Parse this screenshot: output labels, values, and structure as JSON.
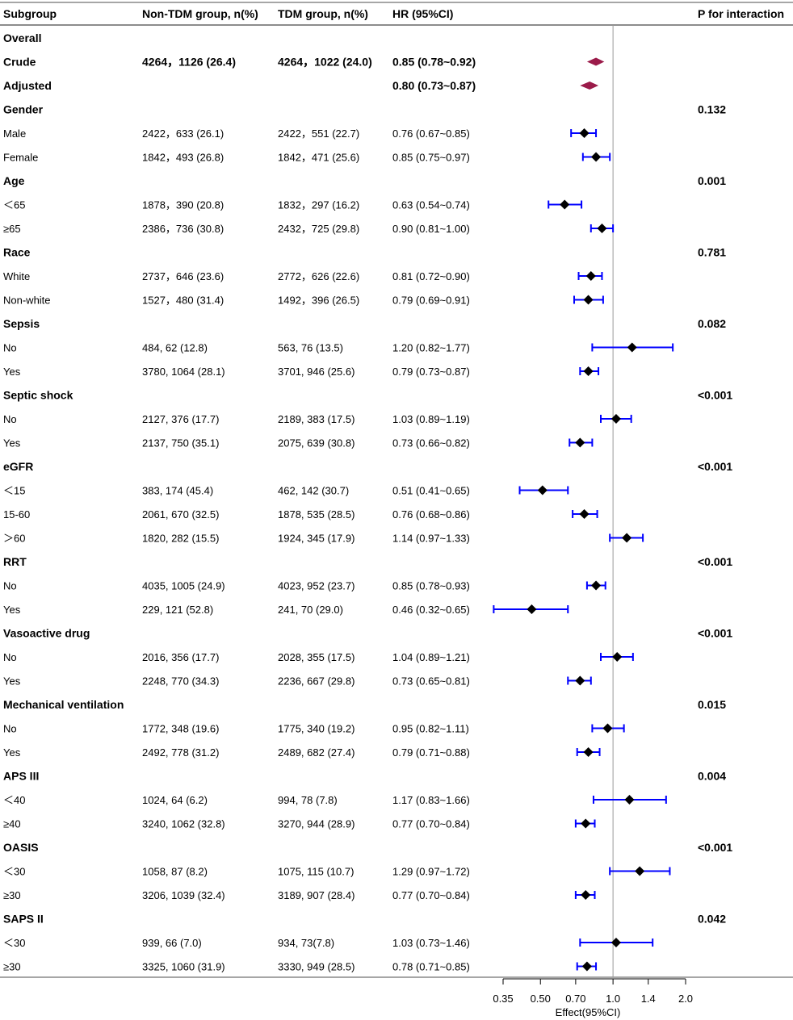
{
  "chart_data": {
    "type": "forest",
    "columns": [
      "Subgroup",
      "Non-TDM group, n(%)",
      "TDM group, n(%)",
      "HR (95%CI)",
      "P for interaction"
    ],
    "x_axis": {
      "label": "Effect(95%CI)",
      "scale": "log",
      "ticks": [
        0.35,
        0.5,
        0.7,
        1.0,
        1.4,
        2.0
      ],
      "tick_labels": [
        "0.35",
        "0.50",
        "0.70",
        "1.0",
        "1.4",
        "2.0"
      ],
      "reference_line": 1.0
    },
    "colors": {
      "summary": "#9b1b4a",
      "point": "#000000",
      "ci": "#0000ff",
      "grid": "#999999"
    },
    "rows": [
      {
        "label": "Overall",
        "heading": true,
        "non_tdm": "",
        "tdm": "",
        "hr_text": "",
        "p": "",
        "hr": null,
        "lo": null,
        "hi": null
      },
      {
        "label": "Crude",
        "heading": true,
        "summary": true,
        "non_tdm": "4264，1126 (26.4)",
        "tdm": "4264，1022 (24.0)",
        "hr_text": "0.85 (0.78~0.92)",
        "p": "",
        "hr": 0.85,
        "lo": 0.78,
        "hi": 0.92
      },
      {
        "label": "Adjusted",
        "heading": true,
        "summary": true,
        "non_tdm": "",
        "tdm": "",
        "hr_text": "0.80 (0.73~0.87)",
        "p": "",
        "hr": 0.8,
        "lo": 0.73,
        "hi": 0.87
      },
      {
        "label": "Gender",
        "heading": true,
        "non_tdm": "",
        "tdm": "",
        "hr_text": "",
        "p": "0.132",
        "hr": null,
        "lo": null,
        "hi": null
      },
      {
        "label": "Male",
        "non_tdm": "2422，633 (26.1)",
        "tdm": "2422，551 (22.7)",
        "hr_text": "0.76 (0.67~0.85)",
        "p": "",
        "hr": 0.76,
        "lo": 0.67,
        "hi": 0.85
      },
      {
        "label": "Female",
        "non_tdm": "1842，493 (26.8)",
        "tdm": "1842，471 (25.6)",
        "hr_text": "0.85 (0.75~0.97)",
        "p": "",
        "hr": 0.85,
        "lo": 0.75,
        "hi": 0.97
      },
      {
        "label": "Age",
        "heading": true,
        "non_tdm": "",
        "tdm": "",
        "hr_text": "",
        "p": "0.001",
        "hr": null,
        "lo": null,
        "hi": null
      },
      {
        "label": "＜65",
        "non_tdm": "1878，390 (20.8)",
        "tdm": "1832，297 (16.2)",
        "hr_text": "0.63 (0.54~0.74)",
        "p": "",
        "hr": 0.63,
        "lo": 0.54,
        "hi": 0.74
      },
      {
        "label": "≥65",
        "non_tdm": "2386，736 (30.8)",
        "tdm": "2432，725 (29.8)",
        "hr_text": "0.90 (0.81~1.00)",
        "p": "",
        "hr": 0.9,
        "lo": 0.81,
        "hi": 1.0
      },
      {
        "label": "Race",
        "heading": true,
        "non_tdm": "",
        "tdm": "",
        "hr_text": "",
        "p": "0.781",
        "hr": null,
        "lo": null,
        "hi": null
      },
      {
        "label": "White",
        "non_tdm": "2737，646 (23.6)",
        "tdm": "2772，626 (22.6)",
        "hr_text": "0.81 (0.72~0.90)",
        "p": "",
        "hr": 0.81,
        "lo": 0.72,
        "hi": 0.9
      },
      {
        "label": "Non-white",
        "non_tdm": "1527，480 (31.4)",
        "tdm": "1492，396 (26.5)",
        "hr_text": "0.79 (0.69~0.91)",
        "p": "",
        "hr": 0.79,
        "lo": 0.69,
        "hi": 0.91
      },
      {
        "label": "Sepsis",
        "heading": true,
        "non_tdm": "",
        "tdm": "",
        "hr_text": "",
        "p": "0.082",
        "hr": null,
        "lo": null,
        "hi": null
      },
      {
        "label": "No",
        "non_tdm": "484, 62 (12.8)",
        "tdm": "563, 76 (13.5)",
        "hr_text": "1.20 (0.82~1.77)",
        "p": "",
        "hr": 1.2,
        "lo": 0.82,
        "hi": 1.77
      },
      {
        "label": "Yes",
        "non_tdm": "3780, 1064 (28.1)",
        "tdm": "3701, 946 (25.6)",
        "hr_text": "0.79 (0.73~0.87)",
        "p": "",
        "hr": 0.79,
        "lo": 0.73,
        "hi": 0.87
      },
      {
        "label": "Septic shock",
        "heading": true,
        "non_tdm": "",
        "tdm": "",
        "hr_text": "",
        "p": "<0.001",
        "hr": null,
        "lo": null,
        "hi": null
      },
      {
        "label": "No",
        "non_tdm": "2127, 376 (17.7)",
        "tdm": "2189, 383 (17.5)",
        "hr_text": "1.03 (0.89~1.19)",
        "p": "",
        "hr": 1.03,
        "lo": 0.89,
        "hi": 1.19
      },
      {
        "label": "Yes",
        "non_tdm": "2137, 750 (35.1)",
        "tdm": "2075, 639 (30.8)",
        "hr_text": "0.73 (0.66~0.82)",
        "p": "",
        "hr": 0.73,
        "lo": 0.66,
        "hi": 0.82
      },
      {
        "label": "eGFR",
        "heading": true,
        "non_tdm": "",
        "tdm": "",
        "hr_text": "",
        "p": "<0.001",
        "hr": null,
        "lo": null,
        "hi": null
      },
      {
        "label": "＜15",
        "non_tdm": "383, 174 (45.4)",
        "tdm": "462, 142 (30.7)",
        "hr_text": "0.51 (0.41~0.65)",
        "p": "",
        "hr": 0.51,
        "lo": 0.41,
        "hi": 0.65
      },
      {
        "label": "15-60",
        "non_tdm": "2061, 670 (32.5)",
        "tdm": "1878, 535 (28.5)",
        "hr_text": "0.76 (0.68~0.86)",
        "p": "",
        "hr": 0.76,
        "lo": 0.68,
        "hi": 0.86
      },
      {
        "label": "＞60",
        "non_tdm": "1820, 282 (15.5)",
        "tdm": "1924, 345 (17.9)",
        "hr_text": "1.14 (0.97~1.33)",
        "p": "",
        "hr": 1.14,
        "lo": 0.97,
        "hi": 1.33
      },
      {
        "label": "RRT",
        "heading": true,
        "non_tdm": "",
        "tdm": "",
        "hr_text": "",
        "p": "<0.001",
        "hr": null,
        "lo": null,
        "hi": null
      },
      {
        "label": "No",
        "non_tdm": "4035, 1005 (24.9)",
        "tdm": "4023, 952 (23.7)",
        "hr_text": "0.85 (0.78~0.93)",
        "p": "",
        "hr": 0.85,
        "lo": 0.78,
        "hi": 0.93
      },
      {
        "label": "Yes",
        "non_tdm": "229, 121 (52.8)",
        "tdm": "241, 70 (29.0)",
        "hr_text": "0.46 (0.32~0.65)",
        "p": "",
        "hr": 0.46,
        "lo": 0.32,
        "hi": 0.65
      },
      {
        "label": "Vasoactive drug",
        "heading": true,
        "non_tdm": "",
        "tdm": "",
        "hr_text": "",
        "p": "<0.001",
        "hr": null,
        "lo": null,
        "hi": null
      },
      {
        "label": "No",
        "non_tdm": "2016, 356 (17.7)",
        "tdm": "2028, 355 (17.5)",
        "hr_text": "1.04 (0.89~1.21)",
        "p": "",
        "hr": 1.04,
        "lo": 0.89,
        "hi": 1.21
      },
      {
        "label": "Yes",
        "non_tdm": "2248, 770 (34.3)",
        "tdm": "2236, 667 (29.8)",
        "hr_text": "0.73 (0.65~0.81)",
        "p": "",
        "hr": 0.73,
        "lo": 0.65,
        "hi": 0.81
      },
      {
        "label": "Mechanical ventilation",
        "heading": true,
        "non_tdm": "",
        "tdm": "",
        "hr_text": "",
        "p": "0.015",
        "hr": null,
        "lo": null,
        "hi": null
      },
      {
        "label": "No",
        "non_tdm": "1772, 348 (19.6)",
        "tdm": "1775, 340 (19.2)",
        "hr_text": "0.95 (0.82~1.11)",
        "p": "",
        "hr": 0.95,
        "lo": 0.82,
        "hi": 1.11
      },
      {
        "label": "Yes",
        "non_tdm": "2492, 778 (31.2)",
        "tdm": "2489, 682 (27.4)",
        "hr_text": "0.79 (0.71~0.88)",
        "p": "",
        "hr": 0.79,
        "lo": 0.71,
        "hi": 0.88
      },
      {
        "label": "APS III",
        "heading": true,
        "non_tdm": "",
        "tdm": "",
        "hr_text": "",
        "p": "0.004",
        "hr": null,
        "lo": null,
        "hi": null
      },
      {
        "label": "＜40",
        "non_tdm": "1024, 64 (6.2)",
        "tdm": "994, 78 (7.8)",
        "hr_text": "1.17 (0.83~1.66)",
        "p": "",
        "hr": 1.17,
        "lo": 0.83,
        "hi": 1.66
      },
      {
        "label": "≥40",
        "non_tdm": "3240, 1062 (32.8)",
        "tdm": "3270, 944 (28.9)",
        "hr_text": "0.77 (0.70~0.84)",
        "p": "",
        "hr": 0.77,
        "lo": 0.7,
        "hi": 0.84
      },
      {
        "label": "OASIS",
        "heading": true,
        "non_tdm": "",
        "tdm": "",
        "hr_text": "",
        "p": "<0.001",
        "hr": null,
        "lo": null,
        "hi": null
      },
      {
        "label": "＜30",
        "non_tdm": "1058, 87 (8.2)",
        "tdm": "1075, 115 (10.7)",
        "hr_text": "1.29 (0.97~1.72)",
        "p": "",
        "hr": 1.29,
        "lo": 0.97,
        "hi": 1.72
      },
      {
        "label": "≥30",
        "non_tdm": "3206, 1039 (32.4)",
        "tdm": "3189, 907 (28.4)",
        "hr_text": "0.77 (0.70~0.84)",
        "p": "",
        "hr": 0.77,
        "lo": 0.7,
        "hi": 0.84
      },
      {
        "label": "SAPS II",
        "heading": true,
        "non_tdm": "",
        "tdm": "",
        "hr_text": "",
        "p": "0.042",
        "hr": null,
        "lo": null,
        "hi": null
      },
      {
        "label": "＜30",
        "non_tdm": "939, 66 (7.0)",
        "tdm": "934, 73(7.8)",
        "hr_text": "1.03 (0.73~1.46)",
        "p": "",
        "hr": 1.03,
        "lo": 0.73,
        "hi": 1.46
      },
      {
        "label": "≥30",
        "non_tdm": "3325, 1060 (31.9)",
        "tdm": "3330, 949 (28.5)",
        "hr_text": "0.78 (0.71~0.85)",
        "p": "",
        "hr": 0.78,
        "lo": 0.71,
        "hi": 0.85
      }
    ]
  }
}
